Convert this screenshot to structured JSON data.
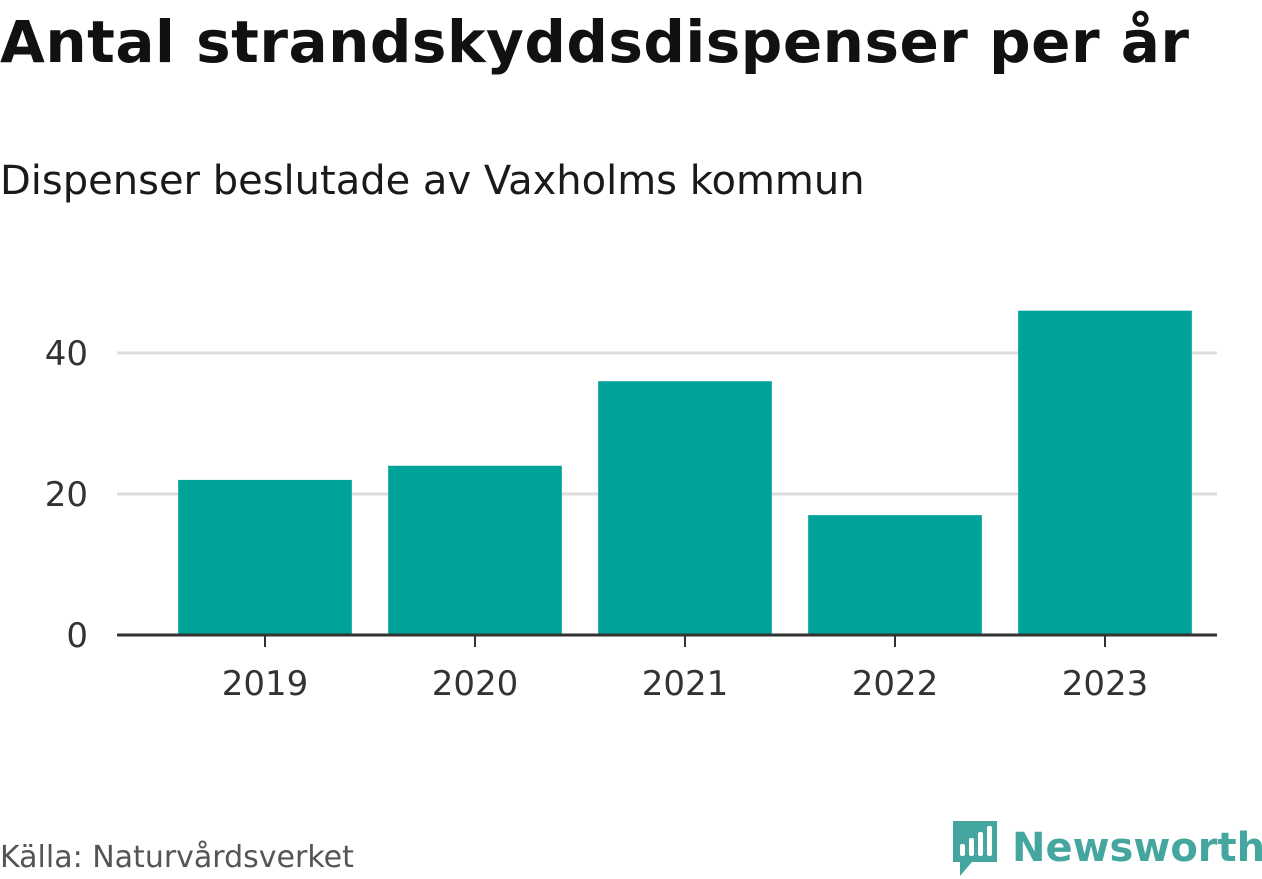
{
  "title": "Antal strandskyddsdispenser per år",
  "subtitle": "Dispenser beslutade av Vaxholms kommun",
  "source": "Källa: Naturvårdsverket",
  "brand": {
    "name": "Newsworthy",
    "color": "#45a6a0",
    "icon": "newsworthy-logo-icon"
  },
  "colors": {
    "bar": "#00a39a",
    "grid": "#dddddd",
    "axis": "#333333",
    "tick_text": "#333333"
  },
  "chart_data": {
    "type": "bar",
    "categories": [
      "2019",
      "2020",
      "2021",
      "2022",
      "2023"
    ],
    "values": [
      22,
      24,
      36,
      17,
      46
    ],
    "ylim": [
      0,
      48
    ],
    "yticks": [
      0,
      20,
      40
    ],
    "grid": true
  }
}
